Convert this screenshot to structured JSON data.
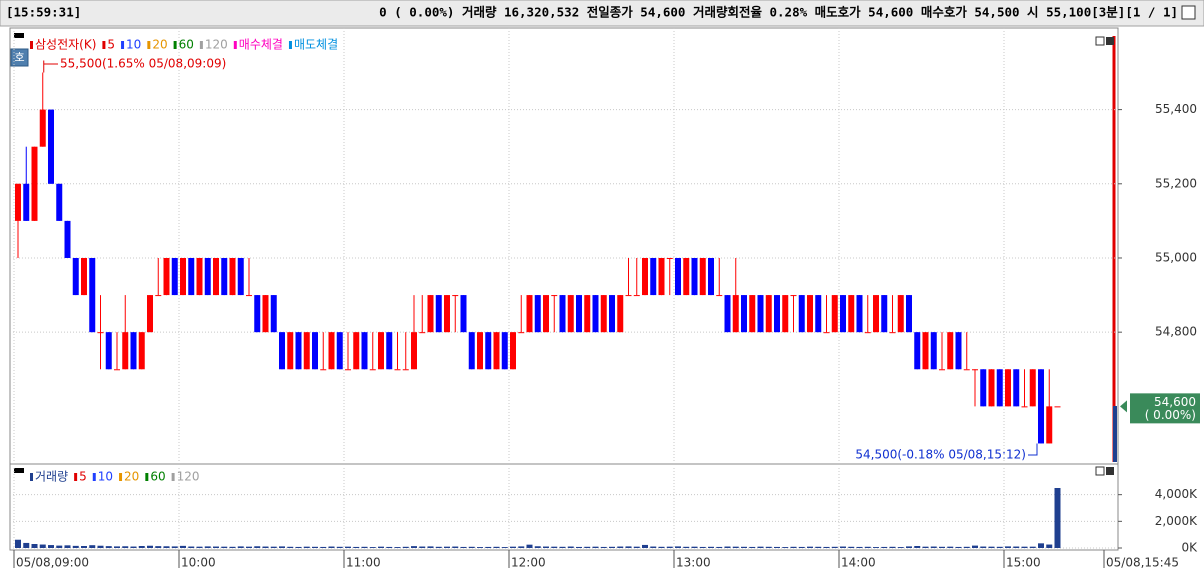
{
  "header": {
    "time": "[15:59:31]",
    "text": "0 ( 0.00%) 거래량 16,320,532 전일종가 54,600 거래량회전율 0.28% 매도호가 54,600 매수호가 54,500 시 55,100[3분][1 / 1]",
    "button": "호"
  },
  "chart_data": [
    {
      "type": "candlestick",
      "legend": [
        {
          "name": "삼성전자(K)",
          "color": "#e00000"
        },
        {
          "name": "5",
          "color": "#e00000"
        },
        {
          "name": "10",
          "color": "#2040ff"
        },
        {
          "name": "20",
          "color": "#e69500"
        },
        {
          "name": "60",
          "color": "#008000"
        },
        {
          "name": "120",
          "color": "#a0a0a0"
        },
        {
          "name": "매수체결",
          "color": "#ff00c0"
        },
        {
          "name": "매도체결",
          "color": "#0090e0"
        }
      ],
      "up_color": "#ff0000",
      "down_color": "#0000ff",
      "grid": true,
      "ylim": [
        54450,
        55620
      ],
      "yticks": [
        {
          "value": 54800,
          "label": "54,800"
        },
        {
          "value": 55000,
          "label": "55,000"
        },
        {
          "value": 55200,
          "label": "55,200"
        },
        {
          "value": 55400,
          "label": "55,400"
        }
      ],
      "annotations": [
        "55,500(1.65% 05/08,09:09)",
        "54,500(-0.18% 05/08,15:12)"
      ],
      "last_price": {
        "value": 54600,
        "label": "54,600"
      },
      "last_change": "( 0.00%)",
      "x_end_label": "05/08,15:45",
      "categories": [
        "05/08,09:00",
        null,
        null,
        null,
        null,
        null,
        null,
        null,
        null,
        null,
        null,
        null,
        null,
        null,
        null,
        null,
        null,
        null,
        null,
        null,
        "10:00",
        null,
        null,
        null,
        null,
        null,
        null,
        null,
        null,
        null,
        null,
        null,
        null,
        null,
        null,
        null,
        null,
        null,
        null,
        null,
        "11:00",
        null,
        null,
        null,
        null,
        null,
        null,
        null,
        null,
        null,
        null,
        null,
        null,
        null,
        null,
        null,
        null,
        null,
        null,
        null,
        "12:00",
        null,
        null,
        null,
        null,
        null,
        null,
        null,
        null,
        null,
        null,
        null,
        null,
        null,
        null,
        null,
        null,
        null,
        null,
        null,
        "13:00",
        null,
        null,
        null,
        null,
        null,
        null,
        null,
        null,
        null,
        null,
        null,
        null,
        null,
        null,
        null,
        null,
        null,
        null,
        null,
        "14:00",
        null,
        null,
        null,
        null,
        null,
        null,
        null,
        null,
        null,
        null,
        null,
        null,
        null,
        null,
        null,
        null,
        null,
        null,
        null,
        "15:00",
        null,
        null,
        null,
        null,
        null,
        null
      ],
      "ohlc": [
        [
          55100,
          55200,
          55000,
          55200
        ],
        [
          55200,
          55300,
          55100,
          55100
        ],
        [
          55100,
          55300,
          55100,
          55300
        ],
        [
          55300,
          55500,
          55300,
          55400
        ],
        [
          55400,
          55400,
          55200,
          55200
        ],
        [
          55200,
          55200,
          55100,
          55100
        ],
        [
          55100,
          55100,
          55000,
          55000
        ],
        [
          55000,
          55000,
          54900,
          54900
        ],
        [
          54900,
          55000,
          54900,
          55000
        ],
        [
          55000,
          55000,
          54800,
          54800
        ],
        [
          54800,
          54900,
          54700,
          54800
        ],
        [
          54800,
          54800,
          54700,
          54700
        ],
        [
          54700,
          54800,
          54700,
          54700
        ],
        [
          54700,
          54900,
          54700,
          54800
        ],
        [
          54800,
          54800,
          54700,
          54700
        ],
        [
          54700,
          54800,
          54700,
          54800
        ],
        [
          54800,
          54900,
          54800,
          54900
        ],
        [
          54900,
          55000,
          54900,
          54900
        ],
        [
          54900,
          55000,
          54900,
          55000
        ],
        [
          55000,
          55000,
          54900,
          54900
        ],
        [
          54900,
          55000,
          54900,
          55000
        ],
        [
          55000,
          55000,
          54900,
          54900
        ],
        [
          54900,
          55000,
          54900,
          55000
        ],
        [
          55000,
          55000,
          54900,
          54900
        ],
        [
          54900,
          55000,
          54900,
          55000
        ],
        [
          55000,
          55000,
          54900,
          54900
        ],
        [
          54900,
          55000,
          54900,
          55000
        ],
        [
          55000,
          55000,
          54900,
          54900
        ],
        [
          54900,
          55000,
          54900,
          54900
        ],
        [
          54900,
          54900,
          54800,
          54800
        ],
        [
          54800,
          54900,
          54800,
          54900
        ],
        [
          54900,
          54900,
          54800,
          54800
        ],
        [
          54800,
          54800,
          54700,
          54700
        ],
        [
          54700,
          54800,
          54700,
          54800
        ],
        [
          54800,
          54800,
          54700,
          54700
        ],
        [
          54700,
          54800,
          54700,
          54800
        ],
        [
          54800,
          54800,
          54700,
          54700
        ],
        [
          54700,
          54800,
          54700,
          54700
        ],
        [
          54700,
          54800,
          54700,
          54800
        ],
        [
          54800,
          54800,
          54700,
          54700
        ],
        [
          54700,
          54800,
          54700,
          54700
        ],
        [
          54700,
          54800,
          54700,
          54800
        ],
        [
          54800,
          54800,
          54700,
          54700
        ],
        [
          54700,
          54800,
          54700,
          54700
        ],
        [
          54700,
          54800,
          54700,
          54800
        ],
        [
          54800,
          54800,
          54700,
          54700
        ],
        [
          54700,
          54800,
          54700,
          54700
        ],
        [
          54700,
          54800,
          54700,
          54700
        ],
        [
          54700,
          54900,
          54700,
          54800
        ],
        [
          54800,
          54900,
          54800,
          54800
        ],
        [
          54800,
          54900,
          54800,
          54900
        ],
        [
          54900,
          54900,
          54800,
          54800
        ],
        [
          54800,
          54900,
          54800,
          54900
        ],
        [
          54900,
          54900,
          54800,
          54900
        ],
        [
          54900,
          54900,
          54800,
          54800
        ],
        [
          54800,
          54800,
          54700,
          54700
        ],
        [
          54700,
          54800,
          54700,
          54800
        ],
        [
          54800,
          54800,
          54700,
          54700
        ],
        [
          54700,
          54800,
          54700,
          54800
        ],
        [
          54800,
          54800,
          54700,
          54700
        ],
        [
          54700,
          54800,
          54700,
          54800
        ],
        [
          54800,
          54900,
          54800,
          54800
        ],
        [
          54800,
          54900,
          54800,
          54900
        ],
        [
          54900,
          54900,
          54800,
          54800
        ],
        [
          54800,
          54900,
          54800,
          54900
        ],
        [
          54900,
          54900,
          54800,
          54900
        ],
        [
          54900,
          54900,
          54800,
          54800
        ],
        [
          54800,
          54900,
          54800,
          54900
        ],
        [
          54900,
          54900,
          54800,
          54800
        ],
        [
          54800,
          54900,
          54800,
          54900
        ],
        [
          54900,
          54900,
          54800,
          54800
        ],
        [
          54800,
          54900,
          54800,
          54900
        ],
        [
          54900,
          54900,
          54800,
          54800
        ],
        [
          54800,
          54900,
          54800,
          54900
        ],
        [
          54900,
          55000,
          54900,
          54900
        ],
        [
          54900,
          55000,
          54900,
          54900
        ],
        [
          54900,
          55000,
          54900,
          55000
        ],
        [
          55000,
          55000,
          54900,
          54900
        ],
        [
          54900,
          55000,
          54900,
          55000
        ],
        [
          55000,
          55000,
          54900,
          55000
        ],
        [
          55000,
          55000,
          54900,
          54900
        ],
        [
          54900,
          55000,
          54900,
          55000
        ],
        [
          55000,
          55000,
          54900,
          54900
        ],
        [
          54900,
          55000,
          54900,
          55000
        ],
        [
          55000,
          55000,
          54900,
          54900
        ],
        [
          54900,
          55000,
          54900,
          54900
        ],
        [
          54900,
          54900,
          54800,
          54800
        ],
        [
          54800,
          55000,
          54800,
          54900
        ],
        [
          54900,
          54900,
          54800,
          54800
        ],
        [
          54800,
          54900,
          54800,
          54900
        ],
        [
          54900,
          54900,
          54800,
          54800
        ],
        [
          54800,
          54900,
          54800,
          54900
        ],
        [
          54900,
          54900,
          54800,
          54800
        ],
        [
          54800,
          54900,
          54800,
          54900
        ],
        [
          54900,
          54900,
          54800,
          54900
        ],
        [
          54900,
          54900,
          54800,
          54800
        ],
        [
          54800,
          54900,
          54800,
          54900
        ],
        [
          54900,
          54900,
          54800,
          54800
        ],
        [
          54800,
          54900,
          54800,
          54800
        ],
        [
          54800,
          54900,
          54800,
          54900
        ],
        [
          54900,
          54900,
          54800,
          54800
        ],
        [
          54800,
          54900,
          54800,
          54900
        ],
        [
          54900,
          54900,
          54800,
          54800
        ],
        [
          54800,
          54900,
          54800,
          54800
        ],
        [
          54800,
          54900,
          54800,
          54900
        ],
        [
          54900,
          54900,
          54800,
          54800
        ],
        [
          54800,
          54900,
          54800,
          54800
        ],
        [
          54800,
          54900,
          54800,
          54900
        ],
        [
          54900,
          54900,
          54800,
          54800
        ],
        [
          54800,
          54800,
          54700,
          54700
        ],
        [
          54700,
          54800,
          54700,
          54800
        ],
        [
          54800,
          54800,
          54700,
          54700
        ],
        [
          54700,
          54800,
          54700,
          54700
        ],
        [
          54700,
          54800,
          54700,
          54800
        ],
        [
          54800,
          54800,
          54700,
          54700
        ],
        [
          54700,
          54800,
          54700,
          54700
        ],
        [
          54700,
          54700,
          54600,
          54700
        ],
        [
          54700,
          54700,
          54600,
          54600
        ],
        [
          54600,
          54700,
          54600,
          54700
        ],
        [
          54700,
          54700,
          54600,
          54600
        ],
        [
          54600,
          54700,
          54600,
          54700
        ],
        [
          54700,
          54700,
          54600,
          54600
        ],
        [
          54600,
          54700,
          54600,
          54600
        ],
        [
          54600,
          54700,
          54600,
          54700
        ],
        [
          54700,
          54700,
          54500,
          54500
        ],
        [
          54500,
          54700,
          54500,
          54600
        ],
        [
          54600,
          54600,
          54600,
          54600
        ]
      ]
    },
    {
      "type": "bar",
      "legend": [
        {
          "name": "거래량",
          "color": "#1f3f8f"
        },
        {
          "name": "5",
          "color": "#e00000"
        },
        {
          "name": "10",
          "color": "#2040ff"
        },
        {
          "name": "20",
          "color": "#e69500"
        },
        {
          "name": "60",
          "color": "#008000"
        },
        {
          "name": "120",
          "color": "#a0a0a0"
        }
      ],
      "color": "#1f3f8f",
      "ylim": [
        0,
        6000000
      ],
      "yticks": [
        {
          "value": 0,
          "label": "0K"
        },
        {
          "value": 2000000,
          "label": "2,000K"
        },
        {
          "value": 4000000,
          "label": "4,000K"
        }
      ],
      "values": [
        620000,
        380000,
        300000,
        260000,
        220000,
        180000,
        200000,
        160000,
        150000,
        210000,
        170000,
        140000,
        120000,
        130000,
        110000,
        150000,
        170000,
        140000,
        130000,
        120000,
        160000,
        110000,
        100000,
        120000,
        110000,
        100000,
        90000,
        120000,
        100000,
        130000,
        110000,
        100000,
        120000,
        90000,
        80000,
        100000,
        90000,
        80000,
        110000,
        90000,
        100000,
        80000,
        90000,
        70000,
        100000,
        80000,
        70000,
        90000,
        140000,
        110000,
        120000,
        90000,
        100000,
        110000,
        80000,
        90000,
        70000,
        80000,
        90000,
        70000,
        100000,
        120000,
        250000,
        130000,
        110000,
        100000,
        90000,
        110000,
        80000,
        90000,
        100000,
        80000,
        90000,
        110000,
        120000,
        100000,
        230000,
        110000,
        90000,
        100000,
        120000,
        90000,
        100000,
        80000,
        90000,
        80000,
        110000,
        100000,
        90000,
        80000,
        100000,
        90000,
        80000,
        70000,
        90000,
        80000,
        100000,
        90000,
        80000,
        90000,
        110000,
        90000,
        80000,
        90000,
        70000,
        80000,
        90000,
        70000,
        120000,
        150000,
        100000,
        110000,
        90000,
        100000,
        80000,
        90000,
        180000,
        110000,
        100000,
        90000,
        120000,
        110000,
        100000,
        100000,
        350000,
        260000,
        4500000
      ]
    }
  ]
}
